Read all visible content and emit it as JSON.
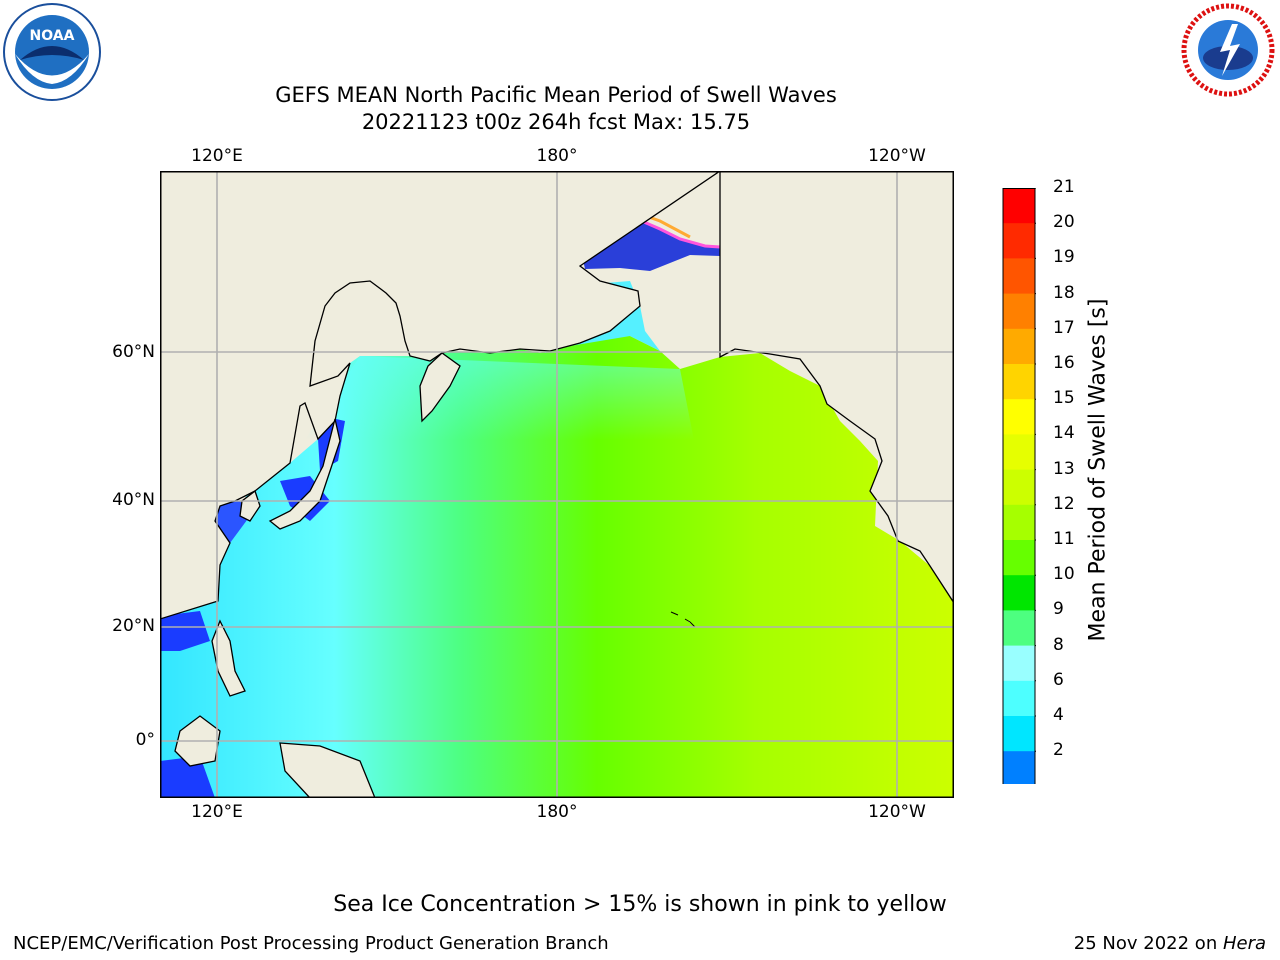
{
  "title": {
    "line1": "GEFS MEAN North Pacific Mean Period of Swell Waves",
    "line2": "20221123 t00z 264h fcst   Max: 15.75"
  },
  "map": {
    "lon_ticks_top": [
      "120°E",
      "180°",
      "120°W"
    ],
    "lon_ticks_bottom": [
      "120°E",
      "180°",
      "120°W"
    ],
    "lat_ticks": [
      "60°N",
      "40°N",
      "20°N",
      "0°"
    ]
  },
  "colorbar": {
    "label": "Mean Period of Swell Waves [s]",
    "ticks": [
      "21",
      "20",
      "19",
      "18",
      "17",
      "16",
      "15",
      "14",
      "13",
      "12",
      "11",
      "10",
      "9",
      "8",
      "6",
      "4",
      "2"
    ],
    "colors": [
      "#ff0000",
      "#ff2a00",
      "#ff5500",
      "#ff8000",
      "#ffaa00",
      "#ffd400",
      "#ffff00",
      "#e6ff00",
      "#ccff00",
      "#a6ff00",
      "#66ff00",
      "#00e600",
      "#4dff80",
      "#99ffff",
      "#4dffff",
      "#00e6ff",
      "#0080ff",
      "#0000ff"
    ]
  },
  "legend_note": "Sea Ice Concentration > 15% is shown in pink to yellow",
  "footer": {
    "left": "NCEP/EMC/Verification Post Processing Product Generation Branch",
    "right_date": "25 Nov 2022 on ",
    "right_host": "Hera"
  },
  "logos": {
    "noaa_text": "NOAA",
    "noaa_ring": "NATIONAL OCEANIC AND ATMOSPHERIC ADMINISTRATION · U.S. DEPARTMENT OF COMMERCE",
    "nws_ring": "NATIONAL WEATHER SERVICE"
  }
}
